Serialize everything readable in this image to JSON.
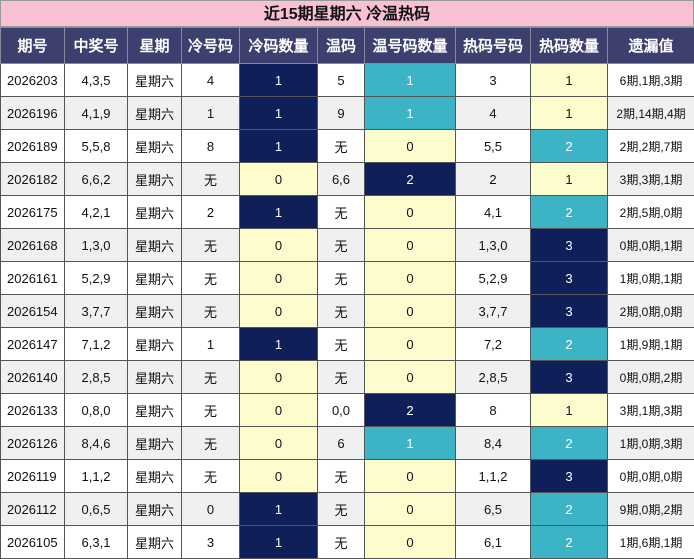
{
  "title": "近15期星期六 冷温热码",
  "headers": [
    "期号",
    "中奖号",
    "星期",
    "冷号码",
    "冷码数量",
    "温码",
    "温号码数量",
    "热码号码",
    "热码数量",
    "遗漏值"
  ],
  "colors": {
    "title_bg": "#f7c1d3",
    "header_bg": "#3d3f6e",
    "dark_cell": "#0f1f5a",
    "teal_cell": "#3db4c6",
    "light_cell": "#fdfccc"
  },
  "rows": [
    {
      "issue": "2026203",
      "number": "4,3,5",
      "weekday": "星期六",
      "cold": "4",
      "cold_count": "1",
      "warm": "5",
      "warm_count": "1",
      "hot": "3",
      "hot_count": "1",
      "miss": "6期,1期,3期"
    },
    {
      "issue": "2026196",
      "number": "4,1,9",
      "weekday": "星期六",
      "cold": "1",
      "cold_count": "1",
      "warm": "9",
      "warm_count": "1",
      "hot": "4",
      "hot_count": "1",
      "miss": "2期,14期,4期"
    },
    {
      "issue": "2026189",
      "number": "5,5,8",
      "weekday": "星期六",
      "cold": "8",
      "cold_count": "1",
      "warm": "无",
      "warm_count": "0",
      "hot": "5,5",
      "hot_count": "2",
      "miss": "2期,2期,7期"
    },
    {
      "issue": "2026182",
      "number": "6,6,2",
      "weekday": "星期六",
      "cold": "无",
      "cold_count": "0",
      "warm": "6,6",
      "warm_count": "2",
      "hot": "2",
      "hot_count": "1",
      "miss": "3期,3期,1期"
    },
    {
      "issue": "2026175",
      "number": "4,2,1",
      "weekday": "星期六",
      "cold": "2",
      "cold_count": "1",
      "warm": "无",
      "warm_count": "0",
      "hot": "4,1",
      "hot_count": "2",
      "miss": "2期,5期,0期"
    },
    {
      "issue": "2026168",
      "number": "1,3,0",
      "weekday": "星期六",
      "cold": "无",
      "cold_count": "0",
      "warm": "无",
      "warm_count": "0",
      "hot": "1,3,0",
      "hot_count": "3",
      "miss": "0期,0期,1期"
    },
    {
      "issue": "2026161",
      "number": "5,2,9",
      "weekday": "星期六",
      "cold": "无",
      "cold_count": "0",
      "warm": "无",
      "warm_count": "0",
      "hot": "5,2,9",
      "hot_count": "3",
      "miss": "1期,0期,1期"
    },
    {
      "issue": "2026154",
      "number": "3,7,7",
      "weekday": "星期六",
      "cold": "无",
      "cold_count": "0",
      "warm": "无",
      "warm_count": "0",
      "hot": "3,7,7",
      "hot_count": "3",
      "miss": "2期,0期,0期"
    },
    {
      "issue": "2026147",
      "number": "7,1,2",
      "weekday": "星期六",
      "cold": "1",
      "cold_count": "1",
      "warm": "无",
      "warm_count": "0",
      "hot": "7,2",
      "hot_count": "2",
      "miss": "1期,9期,1期"
    },
    {
      "issue": "2026140",
      "number": "2,8,5",
      "weekday": "星期六",
      "cold": "无",
      "cold_count": "0",
      "warm": "无",
      "warm_count": "0",
      "hot": "2,8,5",
      "hot_count": "3",
      "miss": "0期,0期,2期"
    },
    {
      "issue": "2026133",
      "number": "0,8,0",
      "weekday": "星期六",
      "cold": "无",
      "cold_count": "0",
      "warm": "0,0",
      "warm_count": "2",
      "hot": "8",
      "hot_count": "1",
      "miss": "3期,1期,3期"
    },
    {
      "issue": "2026126",
      "number": "8,4,6",
      "weekday": "星期六",
      "cold": "无",
      "cold_count": "0",
      "warm": "6",
      "warm_count": "1",
      "hot": "8,4",
      "hot_count": "2",
      "miss": "1期,0期,3期"
    },
    {
      "issue": "2026119",
      "number": "1,1,2",
      "weekday": "星期六",
      "cold": "无",
      "cold_count": "0",
      "warm": "无",
      "warm_count": "0",
      "hot": "1,1,2",
      "hot_count": "3",
      "miss": "0期,0期,0期"
    },
    {
      "issue": "2026112",
      "number": "0,6,5",
      "weekday": "星期六",
      "cold": "0",
      "cold_count": "1",
      "warm": "无",
      "warm_count": "0",
      "hot": "6,5",
      "hot_count": "2",
      "miss": "9期,0期,2期"
    },
    {
      "issue": "2026105",
      "number": "6,3,1",
      "weekday": "星期六",
      "cold": "3",
      "cold_count": "1",
      "warm": "无",
      "warm_count": "0",
      "hot": "6,1",
      "hot_count": "2",
      "miss": "1期,6期,1期"
    }
  ]
}
